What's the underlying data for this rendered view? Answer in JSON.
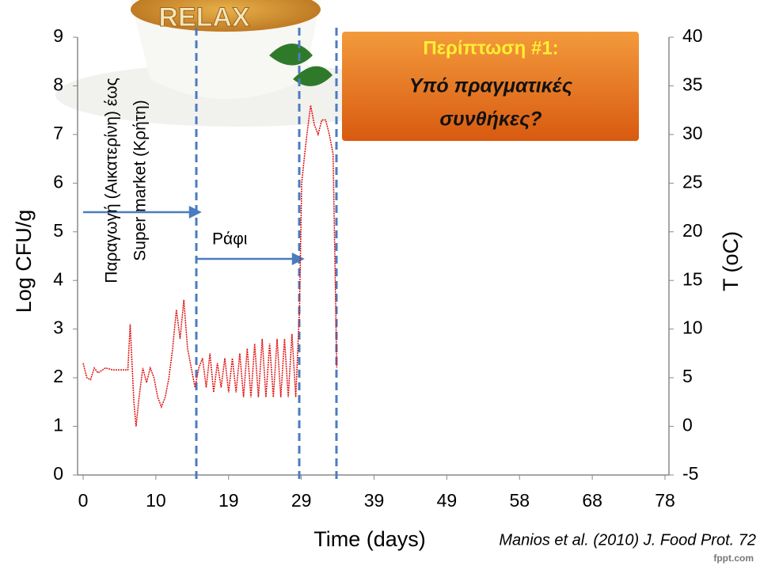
{
  "chart_data": {
    "type": "line",
    "logo": "RELAX",
    "ylabel": "Log CFU/g",
    "y2label": "T (oC)",
    "xlabel": "Time (days)",
    "citation": "Manios et al. (2010) J. Food Prot. 72",
    "annotations": [
      "Παραγωγή (Αικατερίνη) έως",
      "Super market (Κρήτη)",
      "Ράφι"
    ],
    "callout": [
      "Περίπτωση #1:",
      "Υπό πραγματικές",
      "συνθήκες?"
    ],
    "xlim": [
      0,
      78
    ],
    "xticks": [
      0,
      {
        "value": 9.75,
        "label": "10"
      },
      {
        "value": 19.5,
        "label": "19"
      },
      {
        "value": 29.25,
        "label": "29"
      },
      39,
      {
        "value": 48.75,
        "label": "49"
      },
      {
        "value": 58.5,
        "label": "58"
      },
      {
        "value": 68.25,
        "label": "68"
      },
      78
    ],
    "ylim": [
      0,
      9
    ],
    "yticks": [
      0,
      1,
      2,
      3,
      4,
      5,
      6,
      7,
      8,
      9
    ],
    "y2lim": [
      -5,
      40
    ],
    "y2ticks": [
      -5,
      0,
      5,
      10,
      15,
      20,
      25,
      30,
      35,
      40
    ],
    "x": [
      0,
      0.5,
      1,
      1.5,
      2,
      3,
      4,
      5,
      6,
      6.3,
      6.8,
      7.1,
      7.5,
      8,
      8.5,
      9,
      9.5,
      10,
      10.5,
      11,
      11.5,
      12,
      12.5,
      13,
      13.5,
      14,
      14.5,
      15,
      15.5,
      16,
      16.5,
      17,
      17.5,
      18,
      18.5,
      19,
      19.5,
      20,
      20.5,
      21,
      21.5,
      22,
      22.5,
      23,
      23.5,
      24,
      24.5,
      25,
      25.5,
      26,
      26.5,
      27,
      27.5,
      28,
      28.5,
      29,
      29.3,
      29.7,
      30,
      30.5,
      31,
      31.5,
      32,
      32.5,
      33,
      33.5,
      34
    ],
    "series": [
      {
        "color": "#e01010",
        "axis": "y2",
        "values": [
          6.5,
          5.0,
          4.8,
          6.0,
          5.5,
          6.0,
          5.8,
          5.8,
          5.8,
          10.5,
          2.5,
          0,
          3,
          6,
          4.5,
          6,
          5,
          3,
          2,
          3,
          5,
          8,
          12,
          9,
          13,
          8,
          6,
          4,
          6,
          7,
          4,
          7.5,
          3.5,
          6.5,
          4,
          7,
          3.5,
          7,
          3.5,
          7.5,
          3,
          8,
          3,
          8.5,
          3,
          9,
          3,
          8.5,
          3,
          9,
          3,
          9,
          3,
          9.5,
          3,
          12,
          25,
          28,
          30,
          33,
          31,
          30,
          31.5,
          31.5,
          30,
          28,
          6
        ]
      }
    ],
    "watermark": "fppt.com"
  }
}
